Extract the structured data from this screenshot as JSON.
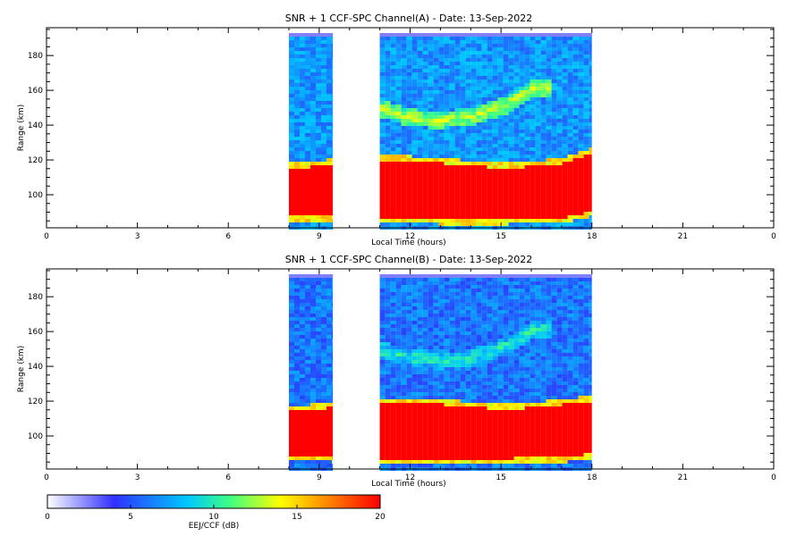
{
  "chart_data": [
    {
      "type": "heatmap",
      "title": "SNR + 1 CCF-SPC Channel(A) - Date: 13-Sep-2022",
      "xlabel": "Local Time (hours)",
      "ylabel": "Range (km)",
      "xlim": [
        0,
        24
      ],
      "ylim": [
        81,
        196
      ],
      "xticks": [
        "0",
        "3",
        "6",
        "9",
        "12",
        "15",
        "18",
        "21",
        "0"
      ],
      "yticks": [
        100,
        120,
        140,
        160,
        180
      ],
      "data_blocks": [
        {
          "x_start": 8.0,
          "x_end": 9.45
        },
        {
          "x_start": 11.0,
          "x_end": 18.0
        }
      ],
      "features": {
        "eej_band": {
          "value_db": 20,
          "bottom_km": [
            89,
            88,
            87,
            87,
            88,
            92
          ],
          "top_km": [
            116,
            121,
            119,
            116,
            119,
            125
          ],
          "x": [
            8.0,
            11.0,
            13.0,
            15.0,
            17.0,
            18.0
          ]
        },
        "echo_layer": {
          "value_db": 13,
          "x": [
            11.0,
            12.0,
            13.0,
            14.0,
            15.0,
            16.0
          ],
          "range_km": [
            150,
            145,
            144,
            146,
            152,
            162
          ]
        },
        "background_db": 7
      }
    },
    {
      "type": "heatmap",
      "title": "SNR + 1 CCF-SPC Channel(B) - Date: 13-Sep-2022",
      "xlabel": "Local Time (hours)",
      "ylabel": "Range (km)",
      "xlim": [
        0,
        24
      ],
      "ylim": [
        81,
        196
      ],
      "xticks": [
        "0",
        "3",
        "6",
        "9",
        "12",
        "15",
        "18",
        "21",
        "0"
      ],
      "yticks": [
        100,
        120,
        140,
        160,
        180
      ],
      "data_blocks": [
        {
          "x_start": 8.0,
          "x_end": 9.45
        },
        {
          "x_start": 11.0,
          "x_end": 18.0
        }
      ],
      "features": {
        "eej_band": {
          "value_db": 20,
          "bottom_km": [
            90,
            88,
            88,
            88,
            89,
            91
          ],
          "top_km": [
            115,
            120,
            119,
            116,
            119,
            121
          ],
          "x": [
            8.0,
            11.0,
            13.0,
            15.0,
            17.0,
            18.0
          ]
        },
        "echo_layer": {
          "value_db": 10,
          "x": [
            11.0,
            12.0,
            13.0,
            14.0,
            15.0,
            16.0
          ],
          "range_km": [
            150,
            146,
            144,
            146,
            152,
            162
          ]
        },
        "background_db": 6
      }
    }
  ],
  "colorbar": {
    "label": "EEJ/CCF (dB)",
    "range": [
      0,
      20
    ],
    "ticks": [
      "0",
      "5",
      "10",
      "15",
      "20"
    ],
    "colormap": [
      "#ffffff",
      "#3030ff",
      "#00c8ff",
      "#40ff80",
      "#ffff00",
      "#ff8000",
      "#ff0000"
    ]
  }
}
